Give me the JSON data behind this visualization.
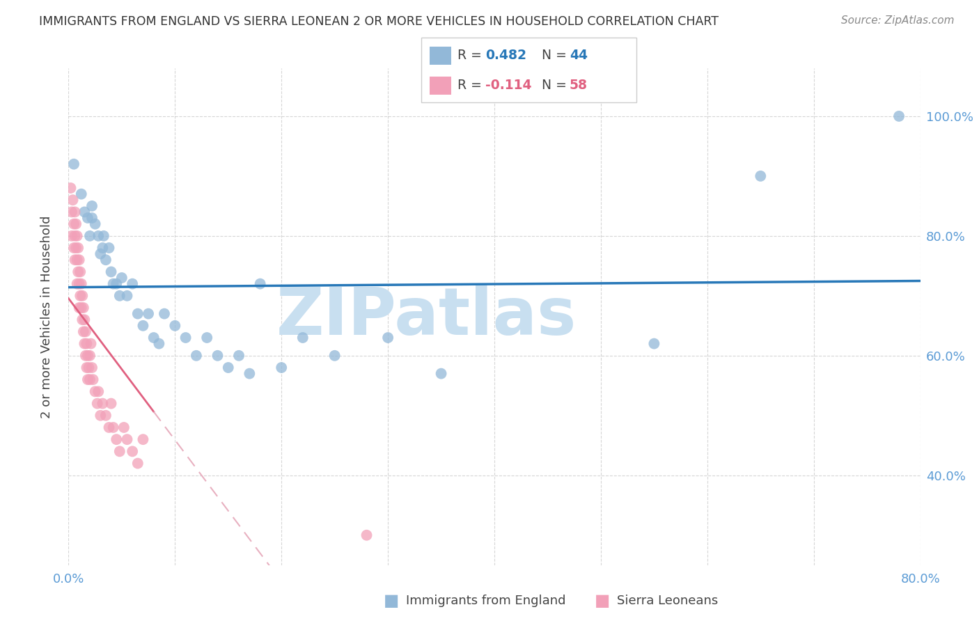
{
  "title": "IMMIGRANTS FROM ENGLAND VS SIERRA LEONEAN 2 OR MORE VEHICLES IN HOUSEHOLD CORRELATION CHART",
  "source": "Source: ZipAtlas.com",
  "ylabel": "2 or more Vehicles in Household",
  "watermark": "ZIPatlas",
  "legend_england_R": "0.482",
  "legend_england_N": "44",
  "legend_sierra_R": "-0.114",
  "legend_sierra_N": "58",
  "eng_color": "#92b8d8",
  "sle_color": "#f2a0b8",
  "eng_line_color": "#2878b8",
  "sle_line_color": "#e06080",
  "sle_line_dashed_color": "#e8b0c0",
  "england_x": [
    0.005,
    0.012,
    0.015,
    0.018,
    0.02,
    0.022,
    0.022,
    0.025,
    0.028,
    0.03,
    0.032,
    0.033,
    0.035,
    0.038,
    0.04,
    0.042,
    0.045,
    0.048,
    0.05,
    0.055,
    0.06,
    0.065,
    0.07,
    0.075,
    0.08,
    0.085,
    0.09,
    0.1,
    0.11,
    0.12,
    0.13,
    0.14,
    0.15,
    0.16,
    0.17,
    0.18,
    0.2,
    0.22,
    0.25,
    0.3,
    0.35,
    0.55,
    0.65,
    0.78
  ],
  "england_y": [
    0.92,
    0.87,
    0.84,
    0.83,
    0.8,
    0.85,
    0.83,
    0.82,
    0.8,
    0.77,
    0.78,
    0.8,
    0.76,
    0.78,
    0.74,
    0.72,
    0.72,
    0.7,
    0.73,
    0.7,
    0.72,
    0.67,
    0.65,
    0.67,
    0.63,
    0.62,
    0.67,
    0.65,
    0.63,
    0.6,
    0.63,
    0.6,
    0.58,
    0.6,
    0.57,
    0.72,
    0.58,
    0.63,
    0.6,
    0.63,
    0.57,
    0.62,
    0.9,
    1.0
  ],
  "sierra_x": [
    0.002,
    0.003,
    0.003,
    0.004,
    0.005,
    0.005,
    0.006,
    0.006,
    0.006,
    0.007,
    0.007,
    0.008,
    0.008,
    0.008,
    0.009,
    0.009,
    0.01,
    0.01,
    0.01,
    0.011,
    0.011,
    0.012,
    0.012,
    0.013,
    0.013,
    0.014,
    0.014,
    0.015,
    0.015,
    0.016,
    0.016,
    0.017,
    0.017,
    0.018,
    0.018,
    0.019,
    0.02,
    0.02,
    0.021,
    0.022,
    0.023,
    0.025,
    0.027,
    0.028,
    0.03,
    0.032,
    0.035,
    0.038,
    0.04,
    0.042,
    0.045,
    0.048,
    0.052,
    0.055,
    0.06,
    0.065,
    0.07,
    0.28
  ],
  "sierra_y": [
    0.88,
    0.84,
    0.8,
    0.86,
    0.82,
    0.78,
    0.84,
    0.8,
    0.76,
    0.82,
    0.78,
    0.8,
    0.76,
    0.72,
    0.78,
    0.74,
    0.76,
    0.72,
    0.68,
    0.74,
    0.7,
    0.72,
    0.68,
    0.7,
    0.66,
    0.68,
    0.64,
    0.66,
    0.62,
    0.64,
    0.6,
    0.62,
    0.58,
    0.6,
    0.56,
    0.58,
    0.6,
    0.56,
    0.62,
    0.58,
    0.56,
    0.54,
    0.52,
    0.54,
    0.5,
    0.52,
    0.5,
    0.48,
    0.52,
    0.48,
    0.46,
    0.44,
    0.48,
    0.46,
    0.44,
    0.42,
    0.46,
    0.3
  ],
  "xlim": [
    0.0,
    0.8
  ],
  "ylim": [
    0.25,
    1.08
  ],
  "yticks": [
    0.4,
    0.6,
    0.8,
    1.0
  ],
  "ytick_labels": [
    "40.0%",
    "60.0%",
    "80.0%",
    "100.0%"
  ],
  "xticks": [
    0.0,
    0.1,
    0.2,
    0.3,
    0.4,
    0.5,
    0.6,
    0.7,
    0.8
  ],
  "xtick_labels": [
    "0.0%",
    "",
    "",
    "",
    "",
    "",
    "",
    "",
    "80.0%"
  ],
  "axis_color": "#5b9bd5",
  "grid_color": "#cccccc",
  "watermark_color": "#c8dff0",
  "title_color": "#333333",
  "source_color": "#888888",
  "bg_color": "#ffffff"
}
